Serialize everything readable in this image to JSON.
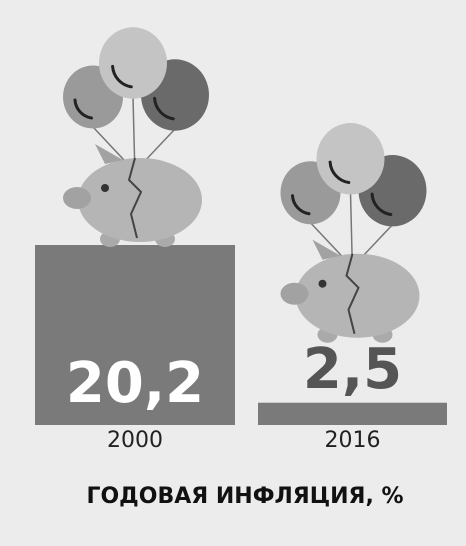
{
  "chart_data": {
    "type": "bar",
    "title": "ГОДОВАЯ ИНФЛЯЦИЯ, %",
    "categories": [
      "2000",
      "2016"
    ],
    "values": [
      20.2,
      2.5
    ],
    "value_labels": [
      "20,2",
      "2,5"
    ],
    "color": "#7a7a7a"
  }
}
